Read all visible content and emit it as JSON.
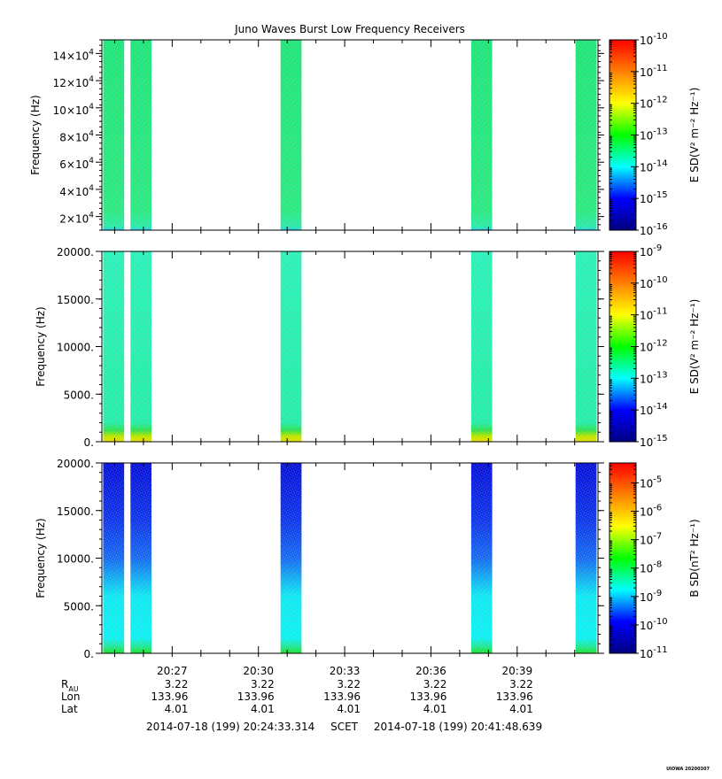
{
  "title": "Juno Waves Burst Low Frequency Receivers",
  "colors": {
    "colormap": [
      "#00007f",
      "#0000ff",
      "#00ffff",
      "#00ff00",
      "#ffff00",
      "#ff7f00",
      "#ff0000"
    ]
  },
  "chart_data": [
    {
      "type": "heatmap",
      "id": "panel-1",
      "ylabel": "Frequency (Hz)",
      "ylim": [
        10000,
        150000
      ],
      "yticks": [
        {
          "value": 20000,
          "mantissa": "2",
          "exp": "4"
        },
        {
          "value": 40000,
          "mantissa": "4",
          "exp": "4"
        },
        {
          "value": 60000,
          "mantissa": "6",
          "exp": "4"
        },
        {
          "value": 80000,
          "mantissa": "8",
          "exp": "4"
        },
        {
          "value": 100000,
          "mantissa": "10",
          "exp": "4"
        },
        {
          "value": 120000,
          "mantissa": "12",
          "exp": "4"
        },
        {
          "value": 140000,
          "mantissa": "14",
          "exp": "4"
        }
      ],
      "colorbar": {
        "label_main": "E SD",
        "label_units": "(V² m⁻² Hz⁻¹)",
        "ticks": [
          {
            "base": "10",
            "exp": "-16"
          },
          {
            "base": "10",
            "exp": "-15"
          },
          {
            "base": "10",
            "exp": "-14"
          },
          {
            "base": "10",
            "exp": "-13"
          },
          {
            "base": "10",
            "exp": "-12"
          },
          {
            "base": "10",
            "exp": "-11"
          },
          {
            "base": "10",
            "exp": "-10"
          }
        ],
        "range_exp": [
          -16,
          -10
        ]
      }
    },
    {
      "type": "heatmap",
      "id": "panel-2",
      "ylabel": "Frequency (Hz)",
      "ylim": [
        0,
        20000
      ],
      "yticks": [
        {
          "value": 0,
          "label": "0."
        },
        {
          "value": 5000,
          "label": "5000."
        },
        {
          "value": 10000,
          "label": "10000."
        },
        {
          "value": 15000,
          "label": "15000."
        },
        {
          "value": 20000,
          "label": "20000."
        }
      ],
      "colorbar": {
        "label_main": "E SD",
        "label_units": "(V² m⁻² Hz⁻¹)",
        "ticks": [
          {
            "base": "10",
            "exp": "-15"
          },
          {
            "base": "10",
            "exp": "-14"
          },
          {
            "base": "10",
            "exp": "-13"
          },
          {
            "base": "10",
            "exp": "-12"
          },
          {
            "base": "10",
            "exp": "-11"
          },
          {
            "base": "10",
            "exp": "-10"
          },
          {
            "base": "10",
            "exp": "-9"
          }
        ],
        "range_exp": [
          -15,
          -9
        ]
      }
    },
    {
      "type": "heatmap",
      "id": "panel-3",
      "ylabel": "Frequency (Hz)",
      "ylim": [
        0,
        20000
      ],
      "yticks": [
        {
          "value": 0,
          "label": "0."
        },
        {
          "value": 5000,
          "label": "5000."
        },
        {
          "value": 10000,
          "label": "10000."
        },
        {
          "value": 15000,
          "label": "15000."
        },
        {
          "value": 20000,
          "label": "20000."
        }
      ],
      "colorbar": {
        "label_main": "B SD",
        "label_units": "(nT² Hz⁻¹)",
        "ticks": [
          {
            "base": "10",
            "exp": "-11"
          },
          {
            "base": "10",
            "exp": "-10"
          },
          {
            "base": "10",
            "exp": "-9"
          },
          {
            "base": "10",
            "exp": "-8"
          },
          {
            "base": "10",
            "exp": "-7"
          },
          {
            "base": "10",
            "exp": "-6"
          },
          {
            "base": "10",
            "exp": "-5"
          }
        ],
        "range_exp": [
          -11,
          -4.3
        ]
      }
    }
  ],
  "time_axis": {
    "range_minutes": [
      1464.555,
      1481.81
    ],
    "tick_labels": [
      {
        "minute": 1467,
        "label": "20:27"
      },
      {
        "minute": 1470,
        "label": "20:30"
      },
      {
        "minute": 1473,
        "label": "20:33"
      },
      {
        "minute": 1476,
        "label": "20:36"
      },
      {
        "minute": 1479,
        "label": "20:39"
      }
    ],
    "minor_step_minutes": 1
  },
  "bursts": [
    {
      "start_minute": 1464.6,
      "end_minute": 1465.33
    },
    {
      "start_minute": 1465.55,
      "end_minute": 1466.28
    },
    {
      "start_minute": 1470.77,
      "end_minute": 1471.5
    },
    {
      "start_minute": 1477.4,
      "end_minute": 1478.13
    },
    {
      "start_minute": 1481.03,
      "end_minute": 1481.76
    }
  ],
  "ephemeris": {
    "rows": [
      {
        "label": "R",
        "sub": "AU",
        "values": [
          "3.22",
          "3.22",
          "3.22",
          "3.22",
          "3.22"
        ]
      },
      {
        "label": "Lon",
        "values": [
          "133.96",
          "133.96",
          "133.96",
          "133.96",
          "133.96"
        ]
      },
      {
        "label": "Lat",
        "values": [
          "4.01",
          "4.01",
          "4.01",
          "4.01",
          "4.01"
        ]
      }
    ]
  },
  "time_range": {
    "start": "2014-07-18 (199) 20:24:33.314",
    "mid": "SCET",
    "end": "2014-07-18 (199) 20:41:48.639"
  },
  "credit": "UIOWA 20200307"
}
